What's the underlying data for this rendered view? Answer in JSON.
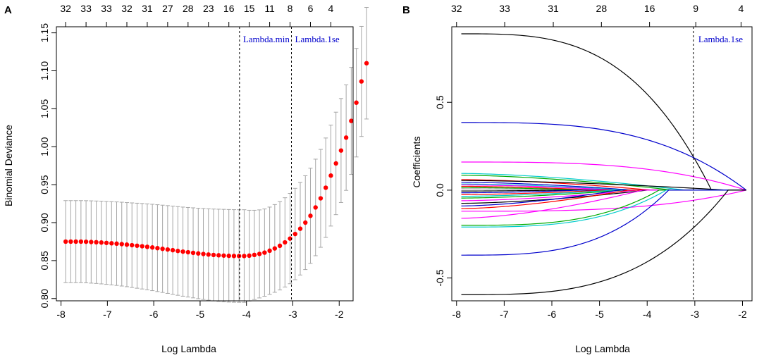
{
  "chart_data": [
    {
      "panel_label": "A",
      "type": "scatter",
      "subtype": "cv-error",
      "xlabel": "Log Lambda",
      "ylabel": "Binomial Deviance",
      "xlim": [
        -8.1,
        -1.7
      ],
      "ylim": [
        0.797,
        1.158
      ],
      "x_ticks": [
        -8,
        -7,
        -6,
        -5,
        -4,
        -3,
        -2
      ],
      "y_ticks": [
        0.8,
        0.85,
        0.9,
        0.95,
        1.0,
        1.05,
        1.1,
        1.15
      ],
      "y_tick_labels": [
        "0.80",
        "0.85",
        "0.90",
        "0.95",
        "1.00",
        "1.05",
        "1.10",
        "1.15"
      ],
      "top_ticks": [
        {
          "x": -7.9,
          "label": "32"
        },
        {
          "x": -7.46,
          "label": "33"
        },
        {
          "x": -7.02,
          "label": "33"
        },
        {
          "x": -6.58,
          "label": "32"
        },
        {
          "x": -6.14,
          "label": "31"
        },
        {
          "x": -5.7,
          "label": "27"
        },
        {
          "x": -5.26,
          "label": "28"
        },
        {
          "x": -4.82,
          "label": "23"
        },
        {
          "x": -4.38,
          "label": "16"
        },
        {
          "x": -3.94,
          "label": "15"
        },
        {
          "x": -3.5,
          "label": "11"
        },
        {
          "x": -3.06,
          "label": "8"
        },
        {
          "x": -2.62,
          "label": "6"
        },
        {
          "x": -2.18,
          "label": "4"
        }
      ],
      "vlines": [
        {
          "x": -4.15,
          "label": "Lambda.min"
        },
        {
          "x": -3.03,
          "label": "Lambda.1se"
        }
      ],
      "x_start": -7.9,
      "x_step": 0.11,
      "mean": [
        0.875,
        0.875,
        0.875,
        0.875,
        0.8748,
        0.8745,
        0.8742,
        0.8738,
        0.8733,
        0.8728,
        0.8723,
        0.8717,
        0.871,
        0.8703,
        0.8696,
        0.8689,
        0.8681,
        0.8673,
        0.8664,
        0.8655,
        0.8646,
        0.8637,
        0.8627,
        0.8618,
        0.861,
        0.8602,
        0.8594,
        0.8587,
        0.858,
        0.8574,
        0.857,
        0.8566,
        0.8563,
        0.8561,
        0.856,
        0.856,
        0.8565,
        0.8575,
        0.8588,
        0.8605,
        0.863,
        0.866,
        0.8695,
        0.874,
        0.879,
        0.885,
        0.892,
        0.9,
        0.909,
        0.92,
        0.932,
        0.946,
        0.962,
        0.978,
        0.995,
        1.012,
        1.034,
        1.058,
        1.086,
        1.11
      ],
      "ci_halfwidth": [
        0.054,
        0.054,
        0.054,
        0.054,
        0.0541,
        0.0542,
        0.0543,
        0.0545,
        0.0546,
        0.0548,
        0.055,
        0.0552,
        0.0554,
        0.0557,
        0.056,
        0.0563,
        0.0566,
        0.0569,
        0.0572,
        0.0575,
        0.0578,
        0.0581,
        0.0584,
        0.0587,
        0.059,
        0.0593,
        0.0596,
        0.0599,
        0.0602,
        0.0605,
        0.0607,
        0.0609,
        0.061,
        0.061,
        0.061,
        0.061,
        0.0598,
        0.0588,
        0.058,
        0.0575,
        0.0575,
        0.0578,
        0.0582,
        0.0588,
        0.0595,
        0.0602,
        0.061,
        0.0618,
        0.0627,
        0.0636,
        0.0645,
        0.0655,
        0.0665,
        0.0675,
        0.0685,
        0.0695,
        0.0705,
        0.0715,
        0.0725,
        0.0735
      ],
      "point_color": "#ff0000",
      "errorbar_color": "#a6a6a6",
      "annotation_color": "#0000cc"
    },
    {
      "panel_label": "B",
      "type": "line",
      "subtype": "coefficient-path",
      "xlabel": "Log Lambda",
      "ylabel": "Coefficients",
      "xlim": [
        -8.1,
        -1.8
      ],
      "ylim": [
        -0.63,
        0.93
      ],
      "x_ticks": [
        -8,
        -7,
        -6,
        -5,
        -4,
        -3,
        -2
      ],
      "y_ticks": [
        -0.5,
        0.0,
        0.5
      ],
      "y_tick_labels": [
        "-0.5",
        "0.0",
        "0.5"
      ],
      "top_ticks": [
        {
          "x": -8.0,
          "label": "32"
        },
        {
          "x": -6.99,
          "label": "33"
        },
        {
          "x": -5.97,
          "label": "31"
        },
        {
          "x": -4.96,
          "label": "28"
        },
        {
          "x": -3.95,
          "label": "16"
        },
        {
          "x": -2.98,
          "label": "9"
        },
        {
          "x": -2.03,
          "label": "4"
        }
      ],
      "vlines": [
        {
          "x": -3.03,
          "label": "Lambda.1se"
        }
      ],
      "annotation_color": "#0000cc",
      "series": [
        {
          "color": "#000000",
          "c0": 0.89,
          "zero_at": -2.65,
          "shape": "concave"
        },
        {
          "color": "#0000cc",
          "c0": 0.385,
          "zero_at": -1.92,
          "shape": "concave"
        },
        {
          "color": "#ff00ff",
          "c0": 0.16,
          "zero_at": -1.92,
          "shape": "concave"
        },
        {
          "color": "#00cccc",
          "c0": 0.095,
          "zero_at": -3.2,
          "shape": "linear"
        },
        {
          "color": "#00aa00",
          "c0": 0.085,
          "zero_at": -3.45,
          "shape": "linear"
        },
        {
          "color": "#ff0000",
          "c0": 0.06,
          "zero_at": -3.9,
          "shape": "linear"
        },
        {
          "color": "#000000",
          "c0": 0.055,
          "zero_at": -2.3,
          "shape": "linear"
        },
        {
          "color": "#0000cc",
          "c0": 0.045,
          "zero_at": -4.3,
          "shape": "linear"
        },
        {
          "color": "#00cccc",
          "c0": 0.035,
          "zero_at": -4.4,
          "shape": "linear"
        },
        {
          "color": "#ff00ff",
          "c0": 0.03,
          "zero_at": -4.6,
          "shape": "linear"
        },
        {
          "color": "#ff0000",
          "c0": 0.022,
          "zero_at": -5.0,
          "shape": "linear"
        },
        {
          "color": "#00aa00",
          "c0": 0.015,
          "zero_at": -5.2,
          "shape": "linear"
        },
        {
          "color": "#9e9e9e",
          "c0": 0.008,
          "zero_at": -5.6,
          "shape": "linear"
        },
        {
          "color": "#000000",
          "c0": -0.005,
          "zero_at": -5.8,
          "shape": "linear"
        },
        {
          "color": "#0000cc",
          "c0": -0.015,
          "zero_at": -5.4,
          "shape": "linear"
        },
        {
          "color": "#ff0000",
          "c0": -0.025,
          "zero_at": -4.9,
          "shape": "linear"
        },
        {
          "color": "#00cccc",
          "c0": -0.035,
          "zero_at": -4.7,
          "shape": "linear"
        },
        {
          "color": "#00aa00",
          "c0": -0.045,
          "zero_at": -4.5,
          "shape": "linear"
        },
        {
          "color": "#ff00ff",
          "c0": -0.06,
          "zero_at": -4.2,
          "shape": "linear"
        },
        {
          "color": "#000000",
          "c0": -0.075,
          "zero_at": -4.0,
          "shape": "linear"
        },
        {
          "color": "#0000cc",
          "c0": -0.09,
          "zero_at": -4.6,
          "shape": "linear"
        },
        {
          "color": "#ff0000",
          "c0": -0.105,
          "zero_at": -4.4,
          "shape": "linear"
        },
        {
          "color": "#ff00ff",
          "c0": -0.12,
          "zero_at": -1.92,
          "shape": "concave"
        },
        {
          "color": "#ff00ff",
          "c0": -0.16,
          "zero_at": -4.1,
          "shape": "linear"
        },
        {
          "color": "#00aa00",
          "c0": -0.2,
          "zero_at": -3.75,
          "shape": "concave"
        },
        {
          "color": "#00cccc",
          "c0": -0.21,
          "zero_at": -3.6,
          "shape": "concave"
        },
        {
          "color": "#0000cc",
          "c0": -0.37,
          "zero_at": -3.55,
          "shape": "concave"
        },
        {
          "color": "#000000",
          "c0": -0.595,
          "zero_at": -2.3,
          "shape": "concave"
        }
      ]
    }
  ]
}
